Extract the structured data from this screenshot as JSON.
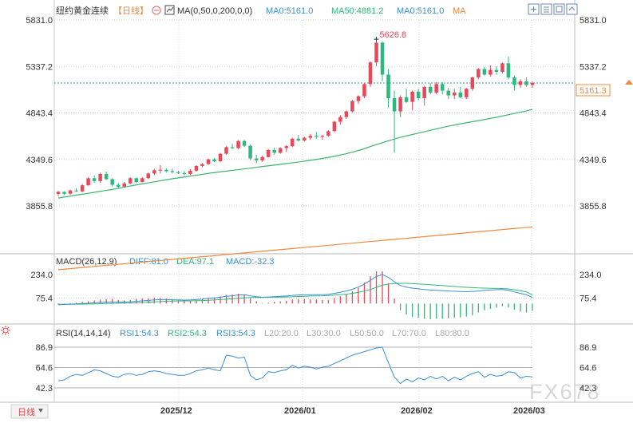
{
  "header": {
    "instrument": "纽约黄金连续",
    "period": "【日线】",
    "ma_params": "MA(0,50,0,200,0,0)",
    "ma0_a": "MA0:5161.0",
    "ma50": "MA50:4881.2",
    "ma0_b": "MA0:5161.0",
    "ma_tail": "MA"
  },
  "colors": {
    "up": "#e8485a",
    "down": "#2db87d",
    "ma50": "#3cb371",
    "ma200": "#f0883e",
    "diff": "#3a8fd6",
    "dea": "#2db87d",
    "rsi": "#3a8fd6",
    "grid": "#c8c8c8",
    "last_line": "#2aa6a6",
    "text_header": "#333333"
  },
  "price_panel": {
    "y_ticks": [
      "5831.0",
      "5337.2",
      "4843.4",
      "4349.6",
      "3855.8"
    ],
    "y_tick_values": [
      5831.0,
      5337.2,
      4843.4,
      4349.6,
      3855.8
    ],
    "high_label": "5626.8",
    "last_price": "5161.3"
  },
  "macd_panel": {
    "title": "MACD(26,12,9)",
    "diff": "DIFF:81.0",
    "dea": "DEA:97.1",
    "macd": "MACD:-32.3",
    "y_ticks": [
      "234.0",
      "75.4"
    ]
  },
  "rsi_panel": {
    "title": "RSI(14,14,14)",
    "rsi1": "RSI1:54.3",
    "rsi2": "RSI2:54.3",
    "rsi3": "RSI3:54.3",
    "l20": "L20:20.0",
    "l30": "L30:30.0",
    "l50": "L50:50.0",
    "l70": "L70:70.0",
    "l80": "L80:80.0",
    "y_ticks": [
      "86.9",
      "64.6",
      "42.3"
    ]
  },
  "x_axis": {
    "labels": [
      "2025/12",
      "2026/01",
      "2026/02",
      "2026/03"
    ],
    "period_button": "日线"
  },
  "watermark": "FX678",
  "chart_data": {
    "type": "candlestick",
    "price_ylim": [
      3855.8,
      5831.0
    ],
    "candles": [
      [
        3983,
        4018,
        3960,
        4005
      ],
      [
        4005,
        4010,
        3970,
        3985
      ],
      [
        3985,
        4030,
        3975,
        4020
      ],
      [
        4020,
        4045,
        4005,
        4010
      ],
      [
        4010,
        4090,
        4000,
        4075
      ],
      [
        4075,
        4160,
        4070,
        4150
      ],
      [
        4150,
        4180,
        4100,
        4120
      ],
      [
        4120,
        4210,
        4100,
        4195
      ],
      [
        4195,
        4220,
        4130,
        4140
      ],
      [
        4140,
        4150,
        4060,
        4080
      ],
      [
        4080,
        4100,
        4040,
        4060
      ],
      [
        4060,
        4110,
        4050,
        4095
      ],
      [
        4095,
        4160,
        4085,
        4150
      ],
      [
        4150,
        4160,
        4100,
        4110
      ],
      [
        4110,
        4160,
        4105,
        4150
      ],
      [
        4150,
        4210,
        4140,
        4200
      ],
      [
        4200,
        4250,
        4185,
        4235
      ],
      [
        4235,
        4290,
        4200,
        4240
      ],
      [
        4240,
        4255,
        4210,
        4225
      ],
      [
        4225,
        4250,
        4200,
        4215
      ],
      [
        4215,
        4230,
        4195,
        4205
      ],
      [
        4205,
        4225,
        4180,
        4195
      ],
      [
        4195,
        4245,
        4185,
        4230
      ],
      [
        4230,
        4290,
        4220,
        4280
      ],
      [
        4280,
        4310,
        4265,
        4300
      ],
      [
        4300,
        4360,
        4290,
        4350
      ],
      [
        4350,
        4365,
        4320,
        4330
      ],
      [
        4330,
        4420,
        4320,
        4410
      ],
      [
        4410,
        4490,
        4400,
        4480
      ],
      [
        4480,
        4515,
        4460,
        4470
      ],
      [
        4470,
        4555,
        4460,
        4545
      ],
      [
        4545,
        4560,
        4480,
        4495
      ],
      [
        4495,
        4505,
        4340,
        4360
      ],
      [
        4360,
        4400,
        4310,
        4340
      ],
      [
        4340,
        4390,
        4325,
        4375
      ],
      [
        4375,
        4460,
        4370,
        4450
      ],
      [
        4450,
        4475,
        4400,
        4420
      ],
      [
        4420,
        4480,
        4410,
        4470
      ],
      [
        4470,
        4500,
        4430,
        4490
      ],
      [
        4490,
        4580,
        4480,
        4570
      ],
      [
        4570,
        4610,
        4540,
        4550
      ],
      [
        4550,
        4590,
        4540,
        4580
      ],
      [
        4580,
        4620,
        4560,
        4600
      ],
      [
        4600,
        4640,
        4570,
        4590
      ],
      [
        4590,
        4610,
        4560,
        4600
      ],
      [
        4600,
        4660,
        4590,
        4650
      ],
      [
        4650,
        4760,
        4640,
        4750
      ],
      [
        4750,
        4820,
        4720,
        4800
      ],
      [
        4800,
        4870,
        4780,
        4860
      ],
      [
        4860,
        4980,
        4850,
        4970
      ],
      [
        4970,
        5030,
        4940,
        5020
      ],
      [
        5020,
        5160,
        5000,
        5150
      ],
      [
        5150,
        5390,
        5120,
        5380
      ],
      [
        5380,
        5626.8,
        5340,
        5590
      ],
      [
        5590,
        5600,
        5180,
        5250
      ],
      [
        5250,
        5310,
        4900,
        5000
      ],
      [
        5000,
        5080,
        4420,
        4860
      ],
      [
        4860,
        5030,
        4800,
        5010
      ],
      [
        5010,
        5100,
        4950,
        4960
      ],
      [
        4960,
        5080,
        4870,
        5070
      ],
      [
        5070,
        5100,
        4980,
        5000
      ],
      [
        5000,
        5130,
        4920,
        5120
      ],
      [
        5120,
        5160,
        5040,
        5060
      ],
      [
        5060,
        5170,
        5040,
        5150
      ],
      [
        5150,
        5170,
        5040,
        5080
      ],
      [
        5080,
        5110,
        4990,
        5030
      ],
      [
        5030,
        5100,
        4990,
        5060
      ],
      [
        5060,
        5120,
        5000,
        5010
      ],
      [
        5010,
        5110,
        4990,
        5100
      ],
      [
        5100,
        5230,
        5080,
        5220
      ],
      [
        5220,
        5320,
        5200,
        5310
      ],
      [
        5310,
        5330,
        5240,
        5250
      ],
      [
        5250,
        5350,
        5230,
        5300
      ],
      [
        5300,
        5340,
        5250,
        5280
      ],
      [
        5280,
        5380,
        5260,
        5370
      ],
      [
        5370,
        5440,
        5200,
        5220
      ],
      [
        5220,
        5240,
        5080,
        5140
      ],
      [
        5140,
        5200,
        5110,
        5180
      ],
      [
        5180,
        5220,
        5120,
        5140
      ],
      [
        5140,
        5180,
        5110,
        5161.3
      ]
    ],
    "ma50": [
      3940,
      3955,
      3970,
      3985,
      4000,
      4015,
      4030,
      4048,
      4066,
      4084,
      4100,
      4116,
      4132,
      4148,
      4162,
      4176,
      4190,
      4204,
      4216,
      4228,
      4240,
      4252,
      4264,
      4276,
      4288,
      4300,
      4312,
      4324,
      4338,
      4352,
      4368,
      4386,
      4406,
      4430,
      4458,
      4490,
      4520,
      4550,
      4578,
      4602,
      4624,
      4646,
      4668,
      4690,
      4710,
      4728,
      4746,
      4762,
      4780,
      4798,
      4818,
      4838,
      4858,
      4881.2
    ],
    "ma50_start_index": 0,
    "ma200": [
      3585,
      3598,
      3611,
      3624,
      3637,
      3650,
      3663,
      3676,
      3689,
      3702,
      3715,
      3728,
      3741,
      3754,
      3767,
      3780,
      3793,
      3806,
      3819,
      3832,
      3845,
      3858,
      3871,
      3884,
      3897,
      3910,
      3923,
      3936,
      3949,
      3962,
      3975,
      3988,
      4001,
      4014,
      4027,
      4040
    ],
    "macd": {
      "ylim": [
        -70,
        260
      ],
      "diff": [
        32,
        34,
        36,
        38,
        40,
        42,
        45,
        48,
        50,
        51,
        50,
        50,
        52,
        55,
        58,
        61,
        64,
        66,
        66,
        65,
        64,
        63,
        64,
        66,
        70,
        75,
        78,
        82,
        88,
        92,
        97,
        98,
        92,
        86,
        82,
        84,
        86,
        88,
        90,
        94,
        97,
        98,
        99,
        100,
        100,
        102,
        108,
        115,
        124,
        135,
        150,
        170,
        195,
        220,
        234,
        215,
        185,
        160,
        150,
        143,
        138,
        134,
        130,
        128,
        126,
        124,
        122,
        120,
        119,
        120,
        124,
        128,
        130,
        132,
        134,
        128,
        118,
        108,
        98,
        81
      ],
      "dea": [
        35,
        35,
        35,
        36,
        36,
        37,
        38,
        39,
        40,
        41,
        42,
        43,
        44,
        45,
        47,
        49,
        51,
        53,
        55,
        56,
        57,
        58,
        58,
        59,
        60,
        62,
        64,
        66,
        69,
        72,
        75,
        78,
        80,
        81,
        81,
        82,
        82,
        83,
        84,
        85,
        87,
        88,
        90,
        91,
        92,
        94,
        96,
        99,
        103,
        108,
        115,
        123,
        134,
        148,
        162,
        170,
        174,
        175,
        175,
        173,
        170,
        168,
        165,
        162,
        160,
        157,
        154,
        151,
        148,
        146,
        144,
        143,
        142,
        141,
        140,
        137,
        132,
        126,
        118,
        97.1
      ]
    },
    "rsi": {
      "ylim": [
        30,
        100
      ],
      "values": [
        50,
        51,
        55,
        57,
        56,
        59,
        62,
        61,
        58,
        55,
        54,
        57,
        58,
        56,
        57,
        60,
        61,
        60,
        58,
        57,
        56,
        56,
        58,
        61,
        62,
        64,
        62,
        61,
        78,
        77,
        75,
        76,
        56,
        51,
        53,
        60,
        59,
        61,
        62,
        67,
        64,
        66,
        65,
        63,
        65,
        66,
        69,
        72,
        75,
        78,
        80,
        82,
        84,
        86,
        86.9,
        70,
        54,
        47,
        52,
        49,
        53,
        51,
        55,
        52,
        55,
        50,
        54,
        51,
        55,
        58,
        60,
        54,
        57,
        55,
        56,
        60,
        59,
        53,
        55,
        54.3
      ],
      "ref_lines": [
        86.9,
        64.6,
        42.3
      ]
    }
  }
}
